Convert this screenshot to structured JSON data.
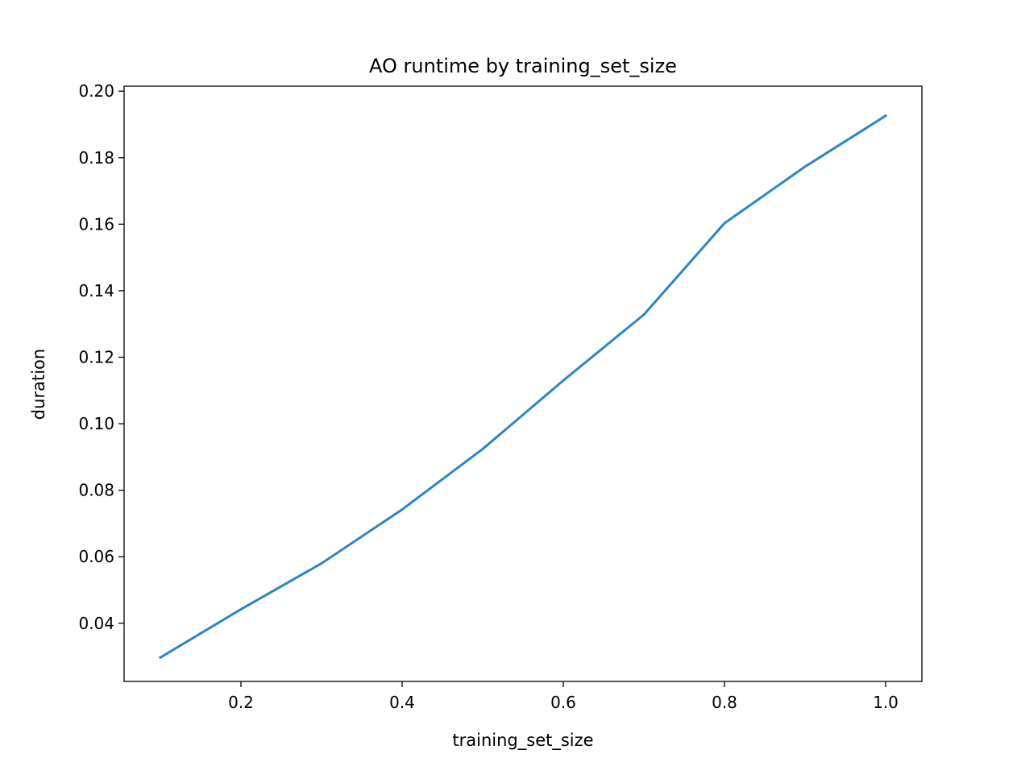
{
  "chart_data": {
    "type": "line",
    "title": "AO runtime by training_set_size",
    "xlabel": "training_set_size",
    "ylabel": "duration",
    "xlim": [
      0.055,
      1.045
    ],
    "ylim": [
      0.0225,
      0.2015
    ],
    "xticks": [
      0.2,
      0.4,
      0.6,
      0.8,
      1.0
    ],
    "xtick_labels": [
      "0.2",
      "0.4",
      "0.6",
      "0.8",
      "1.0"
    ],
    "yticks": [
      0.04,
      0.06,
      0.08,
      0.1,
      0.12,
      0.14,
      0.16,
      0.18,
      0.2
    ],
    "ytick_labels": [
      "0.04",
      "0.06",
      "0.08",
      "0.10",
      "0.12",
      "0.14",
      "0.16",
      "0.18",
      "0.20"
    ],
    "grid": false,
    "series": [
      {
        "color": "#2e86c1",
        "x": [
          0.1,
          0.2,
          0.3,
          0.4,
          0.5,
          0.6,
          0.7,
          0.8,
          0.9,
          1.0
        ],
        "y": [
          0.0297,
          0.0442,
          0.058,
          0.0742,
          0.0924,
          0.113,
          0.1328,
          0.1603,
          0.1773,
          0.1926
        ]
      }
    ]
  }
}
